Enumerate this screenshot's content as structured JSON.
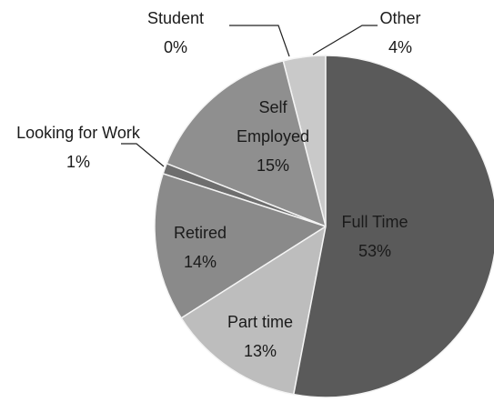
{
  "chart_data": {
    "type": "pie",
    "categories": [
      "Full Time",
      "Part time",
      "Retired",
      "Looking for Work",
      "Self Employed",
      "Student",
      "Other"
    ],
    "values": [
      53,
      13,
      14,
      1,
      15,
      0,
      4
    ],
    "value_labels": [
      "53%",
      "13%",
      "14%",
      "1%",
      "15%",
      "0%",
      "4%"
    ],
    "colors": [
      "#5a5a5a",
      "#bdbdbd",
      "#8a8a8a",
      "#6e6e6e",
      "#8f8f8f",
      "#a5a5a5",
      "#c9c9c9"
    ]
  }
}
